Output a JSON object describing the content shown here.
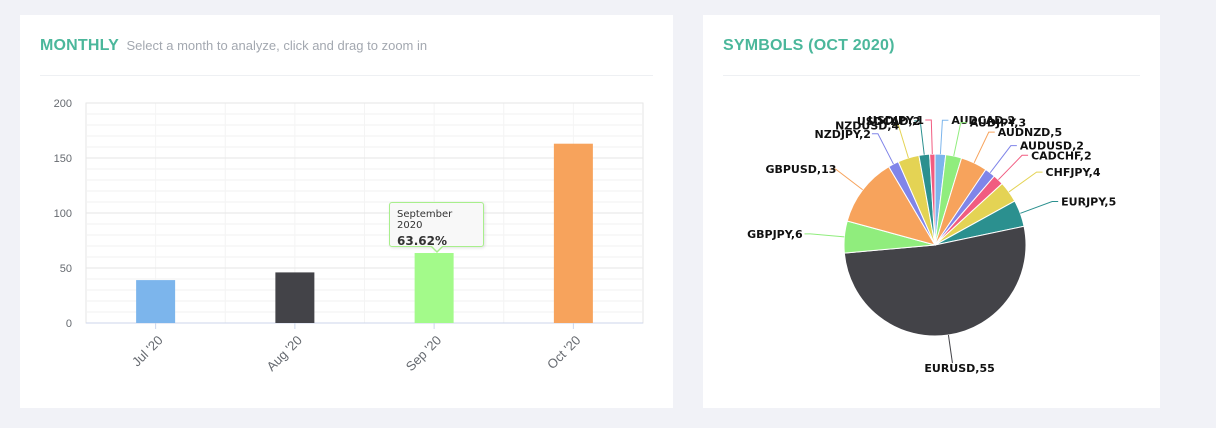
{
  "monthly": {
    "title": "MONTHLY",
    "subtitle": "Select a month to analyze, click and drag to zoom in",
    "tooltip": {
      "title": "September 2020",
      "value": "63.62%"
    }
  },
  "symbols": {
    "title": "SYMBOLS (OCT 2020)"
  },
  "chart_data": [
    {
      "type": "bar",
      "categories": [
        "Jul '20",
        "Aug '20",
        "Sep '20",
        "Oct '20"
      ],
      "values": [
        39,
        46,
        63.62,
        163
      ],
      "colors": [
        "#7cb5ec",
        "#434348",
        "#a3fa8a",
        "#f7a35c"
      ],
      "ylim": [
        0,
        200
      ],
      "yticks": [
        0,
        50,
        100,
        150,
        200
      ],
      "grid": true,
      "legend": "none"
    },
    {
      "type": "pie",
      "slices": [
        {
          "label": "AUDCAD",
          "value": 2,
          "color": "#7cb5ec"
        },
        {
          "label": "AUDJPY",
          "value": 3,
          "color": "#90ed7d"
        },
        {
          "label": "AUDNZD",
          "value": 5,
          "color": "#f7a35c"
        },
        {
          "label": "AUDUSD",
          "value": 2,
          "color": "#8085e9"
        },
        {
          "label": "CADCHF",
          "value": 2,
          "color": "#f15c80"
        },
        {
          "label": "CHFJPY",
          "value": 4,
          "color": "#e4d354"
        },
        {
          "label": "EURJPY",
          "value": 5,
          "color": "#2b908f"
        },
        {
          "label": "EURUSD",
          "value": 55,
          "color": "#434348"
        },
        {
          "label": "GBPJPY",
          "value": 6,
          "color": "#90ed7d"
        },
        {
          "label": "GBPUSD",
          "value": 13,
          "color": "#f7a35c"
        },
        {
          "label": "NZDJPY",
          "value": 2,
          "color": "#8085e9"
        },
        {
          "label": "NZDUSD",
          "value": 4,
          "color": "#e4d354"
        },
        {
          "label": "USDCAD",
          "value": 2,
          "color": "#2b908f"
        },
        {
          "label": "USDJPY",
          "value": 1,
          "color": "#f15c80"
        }
      ],
      "legend": "none"
    }
  ]
}
